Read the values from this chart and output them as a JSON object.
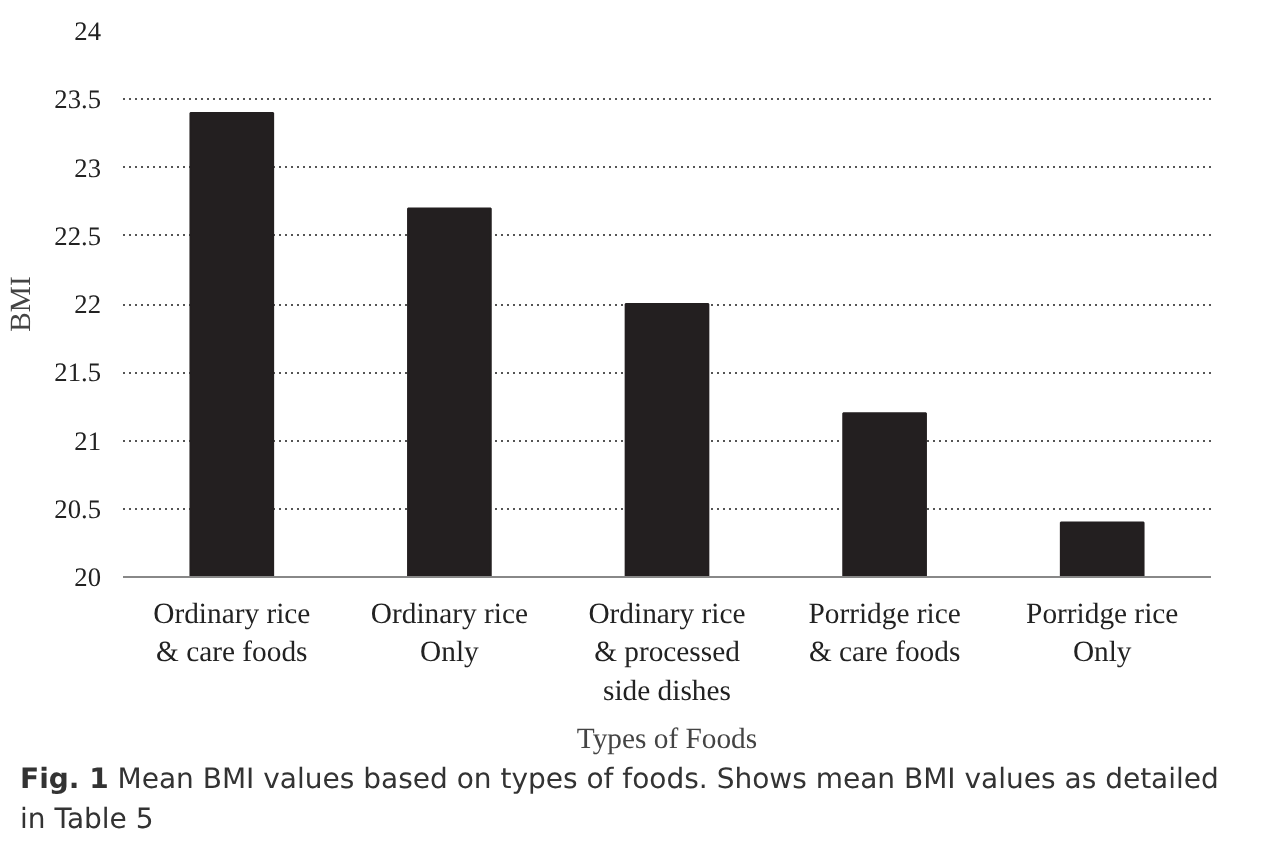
{
  "chart_data": {
    "type": "bar",
    "categories": [
      "Ordinary rice\n& care foods",
      "Ordinary rice\nOnly",
      "Ordinary rice\n& processed\nside dishes",
      "Porridge rice\n& care foods",
      "Porridge rice\nOnly"
    ],
    "values": [
      23.4,
      22.7,
      22.0,
      21.2,
      20.4
    ],
    "color": "#231f20",
    "ylim": [
      20,
      24
    ],
    "yticks": [
      20,
      20.5,
      21,
      21.5,
      22,
      22.5,
      23,
      23.5,
      24
    ],
    "ylabel": "BMI",
    "xlabel": "Types of Foods",
    "grid": "y",
    "annotations": [
      "Fig. 1",
      "Mean BMI values based on types of foods. Shows mean BMI values as detailed in Table 5"
    ]
  }
}
